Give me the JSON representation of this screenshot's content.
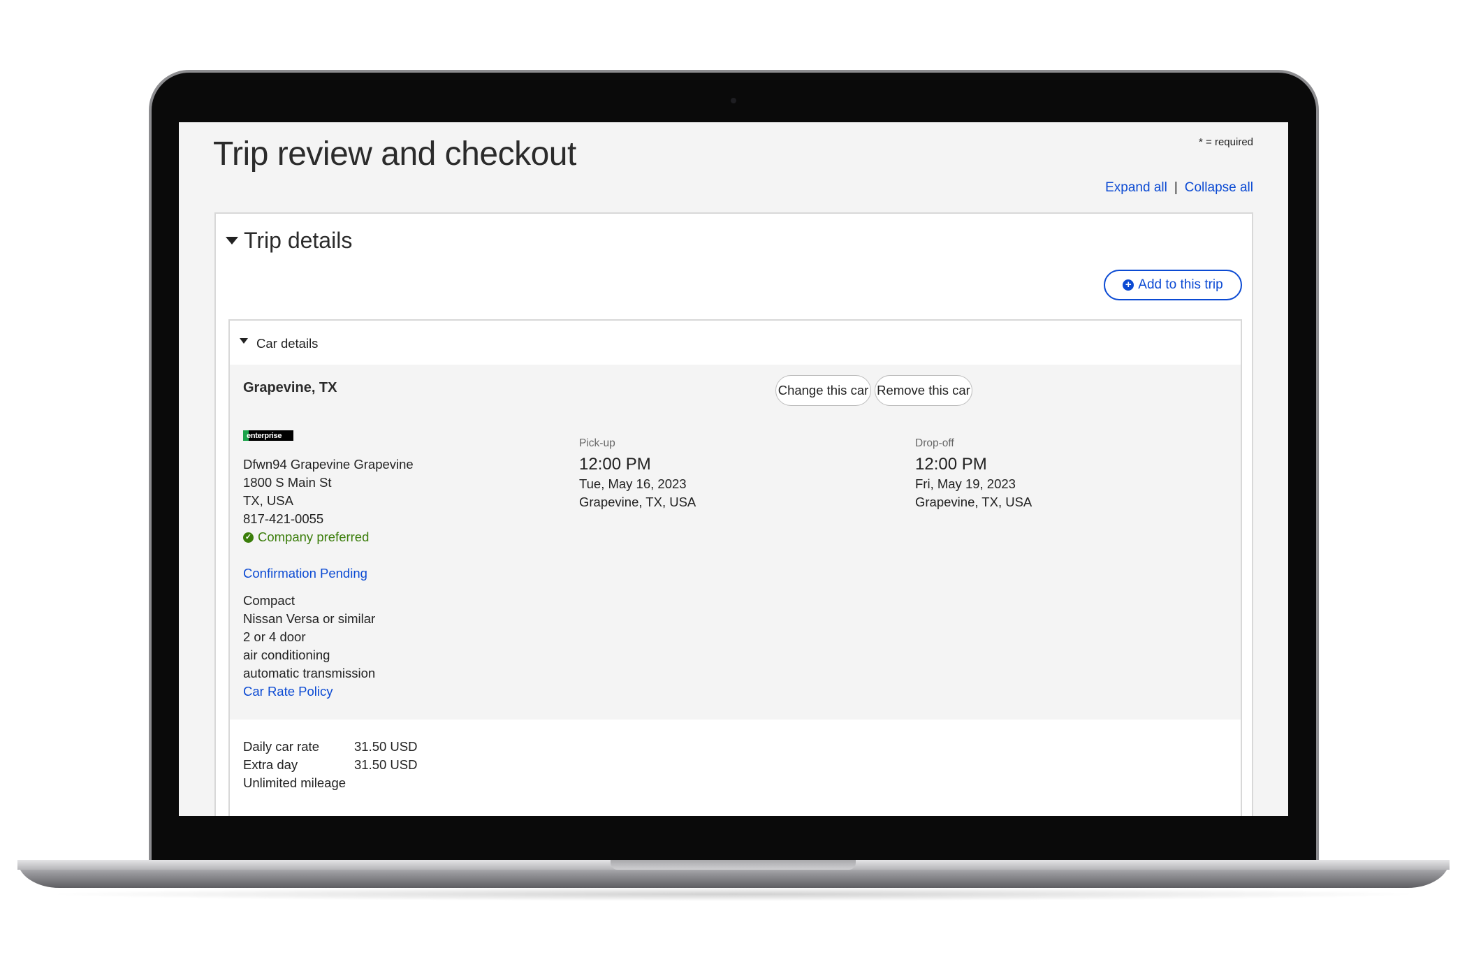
{
  "page": {
    "title": "Trip review and checkout",
    "required_note": "* = required",
    "expand_all": "Expand all",
    "separator": "|",
    "collapse_all": "Collapse all"
  },
  "trip_details": {
    "heading": "Trip details",
    "add_button": "Add to this trip",
    "add_icon": "plus-circle-icon"
  },
  "car_details": {
    "heading": "Car details",
    "location": "Grapevine, TX",
    "change_button": "Change this car",
    "remove_button": "Remove this car",
    "vendor_logo": "enterprise",
    "vendor": {
      "name": "Dfwn94 Grapevine Grapevine",
      "street": "1800 S Main St",
      "region": "TX, USA",
      "phone": "817-421-0055",
      "preferred": "Company preferred"
    },
    "confirmation": "Confirmation Pending",
    "car": {
      "class": "Compact",
      "model": "Nissan Versa or similar",
      "doors": "2 or 4 door",
      "ac": "air conditioning",
      "transmission": "automatic transmission"
    },
    "rate_policy_link": "Car Rate Policy",
    "pickup": {
      "label": "Pick-up",
      "time": "12:00 PM",
      "date": "Tue, May 16, 2023",
      "location": "Grapevine, TX, USA"
    },
    "dropoff": {
      "label": "Drop-off",
      "time": "12:00 PM",
      "date": "Fri, May 19, 2023",
      "location": "Grapevine, TX, USA"
    },
    "rates": [
      {
        "label": "Daily car rate",
        "value": "31.50 USD"
      },
      {
        "label": "Extra day",
        "value": "31.50 USD"
      },
      {
        "label": "Unlimited mileage",
        "value": ""
      }
    ]
  },
  "colors": {
    "link": "#0b4ad3",
    "preferred": "#3a7d0a",
    "background": "#f4f4f4"
  }
}
